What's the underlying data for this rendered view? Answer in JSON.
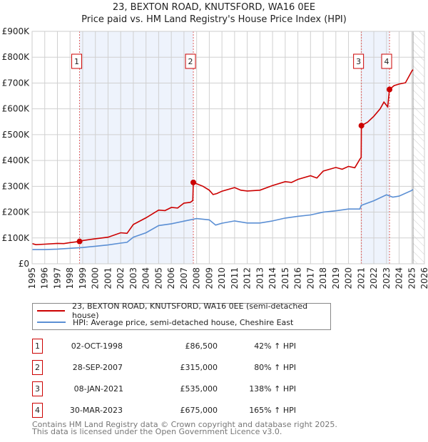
{
  "header": {
    "title": "23, BEXTON ROAD, KNUTSFORD, WA16 0EE",
    "subtitle": "Price paid vs. HM Land Registry's House Price Index (HPI)"
  },
  "chart_data": {
    "type": "line",
    "xlim": [
      1995,
      2026
    ],
    "ylim": [
      0,
      900000
    ],
    "y_ticks": [
      0,
      100000,
      200000,
      300000,
      400000,
      500000,
      600000,
      700000,
      800000,
      900000
    ],
    "y_tick_labels": [
      "£0",
      "£100K",
      "£200K",
      "£300K",
      "£400K",
      "£500K",
      "£600K",
      "£700K",
      "£800K",
      "£900K"
    ],
    "x_ticks": [
      "1995",
      "1996",
      "1997",
      "1998",
      "1999",
      "2000",
      "2001",
      "2002",
      "2003",
      "2004",
      "2005",
      "2006",
      "2007",
      "2008",
      "2009",
      "2010",
      "2011",
      "2012",
      "2013",
      "2014",
      "2015",
      "2016",
      "2017",
      "2018",
      "2019",
      "2020",
      "2021",
      "2022",
      "2023",
      "2024",
      "2025",
      "2026"
    ],
    "grid": true,
    "forecast_hatch_from": 2025.1,
    "shaded_ranges": [
      [
        1998.75,
        2007.74
      ],
      [
        2021.02,
        2023.24
      ]
    ],
    "colors": {
      "property": "#cc0000",
      "hpi": "#5b8fd4",
      "shade": "#eef3fc",
      "marker_line": "#e06060"
    },
    "series": [
      {
        "name": "23, BEXTON ROAD, KNUTSFORD, WA16 0EE (semi-detached house)",
        "color": "#cc0000",
        "x": [
          1995,
          1995.3,
          1996,
          1997,
          1997.5,
          1998,
          1998.75,
          1999,
          2000,
          2001,
          2002,
          2002.5,
          2003,
          2004,
          2005,
          2005.5,
          2006,
          2006.5,
          2007,
          2007.5,
          2007.7,
          2007.74,
          2008,
          2008.5,
          2009,
          2009.3,
          2009.6,
          2010,
          2011,
          2011.5,
          2012,
          2013,
          2014,
          2015,
          2015.5,
          2016,
          2017,
          2017.5,
          2018,
          2019,
          2019.5,
          2020,
          2020.5,
          2020.9,
          2021.0,
          2021.02,
          2021.5,
          2022,
          2022.5,
          2022.8,
          2023.1,
          2023.24,
          2023.6,
          2024,
          2024.5,
          2025,
          2025.1
        ],
        "y": [
          78000,
          74000,
          76000,
          79000,
          78000,
          82000,
          86500,
          90000,
          97000,
          103000,
          120000,
          118000,
          152000,
          178000,
          208000,
          206000,
          218000,
          216000,
          235000,
          238000,
          245000,
          315000,
          310000,
          300000,
          285000,
          268000,
          272000,
          281000,
          295000,
          285000,
          282000,
          285000,
          303000,
          318000,
          315000,
          327000,
          341000,
          332000,
          359000,
          373000,
          366000,
          377000,
          372000,
          405000,
          412000,
          535000,
          548000,
          571000,
          600000,
          626000,
          608000,
          675000,
          690000,
          696000,
          701000,
          746000,
          752000
        ]
      },
      {
        "name": "HPI: Average price, semi-detached house, Cheshire East",
        "color": "#5b8fd4",
        "x": [
          1995,
          1996,
          1997,
          1998,
          1999,
          2000,
          2001,
          2002,
          2002.5,
          2003,
          2004,
          2005,
          2006,
          2007,
          2008,
          2009,
          2009.5,
          2010,
          2011,
          2012,
          2013,
          2014,
          2015,
          2016,
          2017,
          2018,
          2019,
          2020,
          2020.9,
          2021,
          2022,
          2023,
          2023.5,
          2024,
          2025,
          2025.1
        ],
        "y": [
          55000,
          55000,
          57000,
          60000,
          63000,
          68000,
          73000,
          80000,
          83000,
          103000,
          120000,
          148000,
          155000,
          165000,
          175000,
          170000,
          150000,
          157000,
          166000,
          158000,
          158000,
          166000,
          177000,
          184000,
          189000,
          200000,
          205000,
          212000,
          212000,
          226000,
          244000,
          267000,
          258000,
          262000,
          284000,
          288000
        ]
      }
    ],
    "sales": [
      {
        "label": "1",
        "x": 1998.75,
        "y": 86500
      },
      {
        "label": "2",
        "x": 2007.74,
        "y": 315000
      },
      {
        "label": "3",
        "x": 2021.02,
        "y": 535000
      },
      {
        "label": "4",
        "x": 2023.24,
        "y": 675000
      }
    ]
  },
  "legend": {
    "property": "23, BEXTON ROAD, KNUTSFORD, WA16 0EE (semi-detached house)",
    "hpi": "HPI: Average price, semi-detached house, Cheshire East"
  },
  "transactions": [
    {
      "num": "1",
      "date": "02-OCT-1998",
      "price": "£86,500",
      "hpi": "42% ↑ HPI"
    },
    {
      "num": "2",
      "date": "28-SEP-2007",
      "price": "£315,000",
      "hpi": "80% ↑ HPI"
    },
    {
      "num": "3",
      "date": "08-JAN-2021",
      "price": "£535,000",
      "hpi": "138% ↑ HPI"
    },
    {
      "num": "4",
      "date": "30-MAR-2023",
      "price": "£675,000",
      "hpi": "165% ↑ HPI"
    }
  ],
  "footer": {
    "line1": "Contains HM Land Registry data © Crown copyright and database right 2025.",
    "line2": "This data is licensed under the Open Government Licence v3.0."
  }
}
